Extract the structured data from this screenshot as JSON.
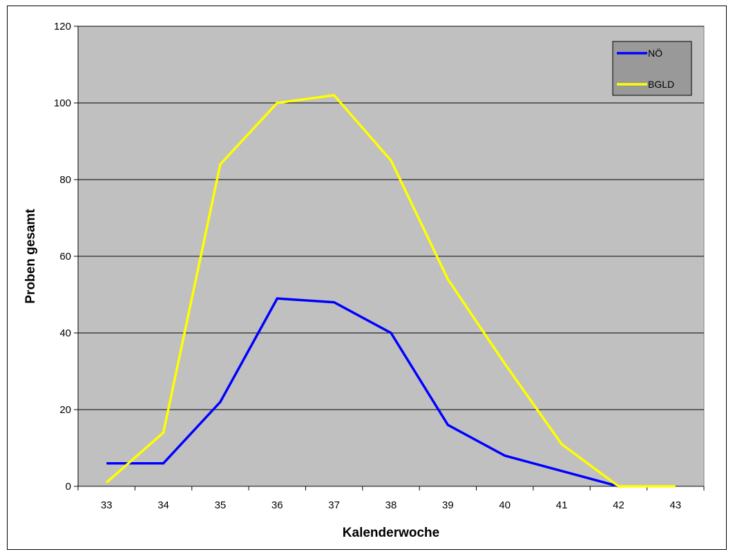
{
  "chart_data": {
    "type": "line",
    "title": "",
    "xlabel": "Kalenderwoche",
    "ylabel": "Proben gesamt",
    "x": [
      "33",
      "34",
      "35",
      "36",
      "37",
      "38",
      "39",
      "40",
      "41",
      "42",
      "43"
    ],
    "ylim": [
      0,
      120
    ],
    "yticks": [
      0,
      20,
      40,
      60,
      80,
      100,
      120
    ],
    "grid": true,
    "legend_position": "top-right",
    "plot_background": "#c0c0c0",
    "series": [
      {
        "name": "NÖ",
        "color": "#0000ff",
        "values": [
          6,
          6,
          22,
          49,
          48,
          40,
          16,
          8,
          4,
          0,
          null
        ]
      },
      {
        "name": "BGLD",
        "color": "#ffff00",
        "values": [
          1,
          14,
          84,
          100,
          102,
          85,
          54,
          32,
          11,
          0,
          0
        ]
      }
    ]
  }
}
